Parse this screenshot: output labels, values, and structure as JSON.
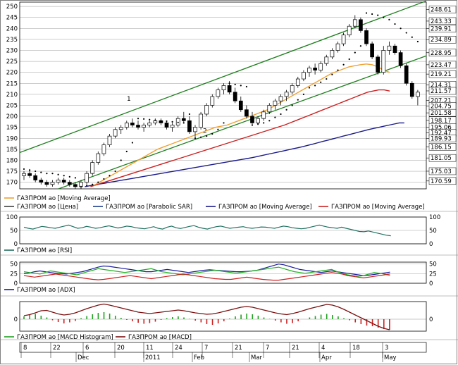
{
  "chart_data": [
    {
      "type": "candlestick",
      "panel": "price",
      "y_ticks": [
        170,
        175,
        180,
        185,
        190,
        195,
        200,
        205,
        210,
        215,
        220,
        225,
        230,
        235,
        240,
        245,
        250
      ],
      "ylim": [
        167,
        251
      ],
      "right_labels": [
        "248.61",
        "243.33",
        "239.91",
        "234.89",
        "228.95",
        "223.47",
        "219.21",
        "214.31",
        "211.57",
        "207.21",
        "204.75",
        "201.58",
        "198.17",
        "195.06",
        "192.47",
        "189.93",
        "186.15",
        "181.05",
        "175.03",
        "170.59"
      ],
      "trend_channel_labels": [
        "1",
        "2"
      ],
      "legend": [
        {
          "label": "ГАЗПРОМ ао [Moving Average]",
          "color": "#f0a030"
        },
        {
          "label": "ГАЗПРОМ ао [Цена]",
          "color": "#404040"
        },
        {
          "label": "ГАЗПРОМ ао [Parabolic SAR]",
          "color": "#1a3a8a"
        },
        {
          "label": "ГАЗПРОМ ао [Moving Average]",
          "color": "#1a1a8a"
        },
        {
          "label": "ГАЗПРОМ ао [Moving Average]",
          "color": "#cc2020"
        }
      ],
      "candles": [
        [
          173,
          175,
          171,
          174
        ],
        [
          174,
          176,
          172,
          173
        ],
        [
          173,
          174,
          170,
          171
        ],
        [
          171,
          172,
          169,
          170
        ],
        [
          170,
          171,
          168,
          169
        ],
        [
          169,
          171,
          168,
          170
        ],
        [
          170,
          172,
          169,
          171
        ],
        [
          171,
          172,
          169,
          170
        ],
        [
          170,
          171,
          168,
          169
        ],
        [
          169,
          170,
          167,
          168
        ],
        [
          168,
          171,
          167,
          170
        ],
        [
          170,
          175,
          169,
          174
        ],
        [
          174,
          180,
          173,
          179
        ],
        [
          179,
          184,
          178,
          183
        ],
        [
          183,
          188,
          182,
          187
        ],
        [
          187,
          192,
          186,
          191
        ],
        [
          191,
          195,
          190,
          194
        ],
        [
          194,
          196,
          192,
          195
        ],
        [
          195,
          198,
          194,
          197
        ],
        [
          197,
          199,
          195,
          196
        ],
        [
          196,
          198,
          194,
          195
        ],
        [
          195,
          197,
          193,
          196
        ],
        [
          196,
          198,
          195,
          197
        ],
        [
          197,
          199,
          196,
          198
        ],
        [
          198,
          199,
          196,
          197
        ],
        [
          197,
          198,
          194,
          195
        ],
        [
          195,
          197,
          193,
          196
        ],
        [
          196,
          200,
          195,
          199
        ],
        [
          199,
          202,
          197,
          198
        ],
        [
          198,
          200,
          192,
          193
        ],
        [
          193,
          196,
          190,
          195
        ],
        [
          195,
          202,
          194,
          201
        ],
        [
          201,
          206,
          200,
          205
        ],
        [
          205,
          210,
          204,
          209
        ],
        [
          209,
          213,
          208,
          212
        ],
        [
          212,
          215,
          210,
          214
        ],
        [
          214,
          216,
          210,
          211
        ],
        [
          211,
          213,
          206,
          207
        ],
        [
          207,
          209,
          202,
          203
        ],
        [
          203,
          205,
          199,
          200
        ],
        [
          200,
          202,
          196,
          197
        ],
        [
          197,
          200,
          196,
          199
        ],
        [
          199,
          203,
          198,
          202
        ],
        [
          202,
          206,
          201,
          205
        ],
        [
          205,
          208,
          203,
          207
        ],
        [
          207,
          210,
          205,
          209
        ],
        [
          209,
          212,
          207,
          211
        ],
        [
          211,
          215,
          210,
          214
        ],
        [
          214,
          218,
          213,
          217
        ],
        [
          217,
          221,
          216,
          220
        ],
        [
          220,
          223,
          218,
          222
        ],
        [
          222,
          224,
          219,
          221
        ],
        [
          221,
          225,
          220,
          224
        ],
        [
          224,
          228,
          223,
          227
        ],
        [
          227,
          231,
          226,
          230
        ],
        [
          230,
          234,
          229,
          233
        ],
        [
          233,
          238,
          232,
          237
        ],
        [
          237,
          242,
          236,
          241
        ],
        [
          241,
          246,
          240,
          244
        ],
        [
          244,
          245,
          238,
          239
        ],
        [
          239,
          240,
          232,
          233
        ],
        [
          233,
          234,
          226,
          227
        ],
        [
          227,
          228,
          219,
          220
        ],
        [
          220,
          232,
          219,
          230
        ],
        [
          230,
          234,
          228,
          232
        ],
        [
          232,
          233,
          228,
          229
        ],
        [
          229,
          230,
          222,
          223
        ],
        [
          223,
          224,
          214,
          215
        ],
        [
          215,
          216,
          208,
          209
        ],
        [
          209,
          212,
          205,
          211
        ]
      ],
      "sar": [
        176,
        175.5,
        175,
        174.5,
        174,
        174,
        173.5,
        173,
        172.5,
        172,
        168,
        168.5,
        169,
        170,
        171.5,
        173,
        175,
        180,
        184,
        188,
        199,
        198.8,
        198.5,
        198.2,
        198,
        197.8,
        197.5,
        197.2,
        197,
        201,
        190,
        190.5,
        191,
        192,
        194,
        197,
        215,
        214.5,
        214,
        213.5,
        196,
        196.5,
        197,
        198,
        199.5,
        201,
        203,
        205,
        207.5,
        210,
        213,
        214,
        215.5,
        217,
        219,
        221,
        223.5,
        226,
        229,
        232,
        247,
        246.5,
        246,
        245,
        244,
        242,
        240,
        238,
        236,
        234
      ],
      "ma_short": [
        null,
        null,
        null,
        null,
        null,
        null,
        null,
        null,
        null,
        null,
        null,
        null,
        168.5,
        170,
        171.5,
        173,
        174.5,
        176,
        177.5,
        179,
        180.5,
        182,
        183.5,
        185,
        186,
        187,
        188,
        189,
        190,
        191,
        192,
        193,
        194,
        195,
        195.5,
        196,
        197,
        198,
        199,
        200,
        201,
        202,
        203,
        204.5,
        206,
        207.5,
        209,
        210.5,
        212,
        213.5,
        215,
        216.5,
        218,
        219.5,
        220.5,
        221.5,
        222.5,
        223,
        223.5,
        223.8,
        223.5,
        222.5,
        221,
        220
      ],
      "ma_mid": [
        null,
        null,
        null,
        null,
        null,
        null,
        null,
        null,
        null,
        null,
        null,
        null,
        168,
        168.8,
        169.6,
        170.4,
        171.2,
        172,
        172.8,
        173.6,
        174.4,
        175.2,
        176,
        176.8,
        177.6,
        178.4,
        179.2,
        180,
        180.8,
        181.6,
        182.4,
        183.2,
        184,
        184.8,
        185.6,
        186.4,
        187.2,
        188,
        188.8,
        189.6,
        190.4,
        191.2,
        192,
        192.8,
        193.6,
        194.4,
        195.2,
        196,
        197,
        198,
        199,
        200,
        201,
        202,
        203,
        204,
        205,
        206,
        207,
        208,
        209,
        210,
        211,
        211.5,
        212,
        212,
        211.5
      ],
      "ma_long": [
        null,
        null,
        null,
        null,
        null,
        null,
        null,
        null,
        null,
        null,
        null,
        null,
        168,
        168.4,
        168.8,
        169.2,
        169.6,
        170,
        170.4,
        170.8,
        171.2,
        171.6,
        172,
        172.4,
        172.8,
        173.2,
        173.6,
        174,
        174.4,
        174.8,
        175.2,
        175.6,
        176,
        176.4,
        176.8,
        177.2,
        177.6,
        178,
        178.4,
        178.8,
        179.2,
        179.6,
        180,
        180.4,
        180.8,
        181.2,
        181.7,
        182.2,
        182.7,
        183.2,
        183.7,
        184.2,
        184.7,
        185.2,
        185.7,
        186.2,
        186.8,
        187.4,
        188,
        188.6,
        189.2,
        189.8,
        190.4,
        191,
        191.6,
        192.2,
        192.8,
        193.4,
        194,
        194.5,
        195,
        195.5,
        196,
        196.5,
        197,
        197
      ]
    },
    {
      "type": "line",
      "panel": "RSI",
      "y_ticks": [
        0,
        50,
        100
      ],
      "legend": [
        {
          "label": "ГАЗПРОМ ао [RSI]",
          "color": "#207060"
        }
      ],
      "values": [
        62,
        58,
        55,
        60,
        65,
        63,
        60,
        58,
        62,
        66,
        70,
        64,
        58,
        60,
        65,
        62,
        58,
        60,
        64,
        67,
        63,
        59,
        62,
        66,
        64,
        60,
        58,
        56,
        60,
        64,
        58,
        55,
        62,
        66,
        60,
        57,
        61,
        65,
        68,
        62,
        58,
        55,
        60,
        64,
        66,
        62,
        58,
        60,
        62,
        64,
        60,
        58,
        60,
        63,
        62,
        60,
        58,
        62,
        66,
        64,
        60,
        58,
        56,
        58,
        62,
        66,
        70,
        66,
        62,
        60,
        58,
        62,
        58,
        54,
        50,
        46,
        45,
        48,
        44,
        40,
        36,
        32,
        30
      ]
    },
    {
      "type": "line",
      "panel": "ADX",
      "y_ticks": [
        0,
        25,
        50
      ],
      "legend": [
        {
          "label": "ГАЗПРОМ ао [ADX]",
          "color": "#1a1aa0"
        }
      ],
      "series": [
        {
          "name": "ГАЗПРОМ ао [ADX]",
          "color": "#1a1aa0",
          "values": [
            25,
            27,
            30,
            32,
            30,
            28,
            26,
            25,
            24,
            26,
            28,
            30,
            34,
            38,
            42,
            45,
            44,
            42,
            40,
            38,
            36,
            34,
            32,
            30,
            30,
            32,
            34,
            36,
            34,
            32,
            30,
            28,
            30,
            32,
            34,
            35,
            34,
            33,
            32,
            31,
            30,
            30,
            31,
            32,
            34,
            38,
            42,
            46,
            50,
            48,
            44,
            40,
            36,
            34,
            32,
            30,
            28,
            30,
            32,
            30,
            28,
            26,
            24,
            22,
            20,
            21,
            23,
            25,
            27,
            29
          ]
        },
        {
          "values": [
            30,
            28,
            26,
            24,
            28,
            32,
            30,
            28,
            26,
            24,
            22,
            26,
            30,
            34,
            38,
            36,
            34,
            32,
            30,
            28,
            30,
            32,
            34,
            36,
            38,
            34,
            30,
            28,
            26,
            24,
            22,
            24,
            26,
            28,
            30,
            32,
            34,
            32,
            30,
            28,
            26,
            28,
            30,
            32,
            34,
            36,
            38,
            40,
            42,
            38,
            34,
            30,
            28,
            26,
            28,
            30,
            32,
            34,
            36,
            30,
            26,
            22,
            20,
            18,
            20,
            24,
            28,
            26,
            24,
            20
          ]
        },
        {
          "color": "#cc2020",
          "values": [
            20,
            18,
            16,
            18,
            20,
            22,
            24,
            22,
            20,
            18,
            16,
            14,
            12,
            10,
            9,
            10,
            12,
            14,
            16,
            18,
            20,
            18,
            16,
            14,
            12,
            14,
            16,
            18,
            20,
            22,
            24,
            22,
            20,
            18,
            16,
            14,
            12,
            11,
            10,
            10,
            12,
            14,
            16,
            14,
            12,
            10,
            9,
            8,
            8,
            10,
            12,
            14,
            16,
            18,
            20,
            22,
            24,
            26,
            28,
            26,
            24,
            20,
            18,
            16,
            14,
            16,
            18,
            20,
            22,
            24
          ]
        }
      ]
    },
    {
      "type": "bar",
      "panel": "MACD",
      "legend": [
        {
          "label": "ГАЗПРОМ ао [MACD Histogram]",
          "color": "#20a020"
        },
        {
          "label": "ГАЗПРОМ ао [MACD]",
          "color": "#cc2020"
        }
      ],
      "histogram": [
        0.8,
        1.2,
        1.5,
        1.0,
        0.5,
        -0.3,
        -0.8,
        -1.2,
        -0.9,
        -0.5,
        0.3,
        0.9,
        1.4,
        1.8,
        2.0,
        1.6,
        1.0,
        0.4,
        -0.2,
        -0.6,
        -1.0,
        -1.3,
        -1.1,
        -0.7,
        -0.2,
        0.3,
        0.6,
        0.8,
        0.5,
        0.1,
        -0.4,
        -0.9,
        -1.4,
        -1.6,
        -1.2,
        -0.6,
        0.2,
        0.8,
        1.3,
        1.6,
        1.4,
        1.0,
        0.5,
        0.1,
        -0.4,
        -0.9,
        -1.3,
        -1.1,
        -0.6,
        0.0,
        0.5,
        0.9,
        1.3,
        1.5,
        1.2,
        0.8,
        0.3,
        -0.3,
        -0.9,
        -1.4,
        -1.8,
        -2.0,
        -2.4,
        -2.8,
        -3.0
      ],
      "macd": [
        1.0,
        1.3,
        1.8,
        2.4,
        2.5,
        2.0,
        1.5,
        1.2,
        1.4,
        1.8,
        2.4,
        3.0,
        3.5,
        4.0,
        4.3,
        4.0,
        3.6,
        3.2,
        2.8,
        2.4,
        2.0,
        1.8,
        1.6,
        1.8,
        2.0,
        2.2,
        2.4,
        2.6,
        2.4,
        2.1,
        1.8,
        1.6,
        1.4,
        1.5,
        1.8,
        2.2,
        2.6,
        3.0,
        3.4,
        3.6,
        3.4,
        3.0,
        2.6,
        2.2,
        1.8,
        1.5,
        1.3,
        1.6,
        2.0,
        2.5,
        3.0,
        3.4,
        3.8,
        4.2,
        4.0,
        3.5,
        2.8,
        2.0,
        1.2,
        0.4,
        -0.4,
        -1.2,
        -2.0,
        -2.6,
        -3.0
      ]
    }
  ],
  "x_axis": {
    "ticks": [
      "8",
      "22",
      "6",
      "20",
      "11",
      "24",
      "7",
      "21",
      "7",
      "21",
      "4",
      "18",
      "3"
    ],
    "months": [
      "Dec",
      "2011",
      "Feb",
      "Mar",
      "Apr",
      "May"
    ]
  }
}
